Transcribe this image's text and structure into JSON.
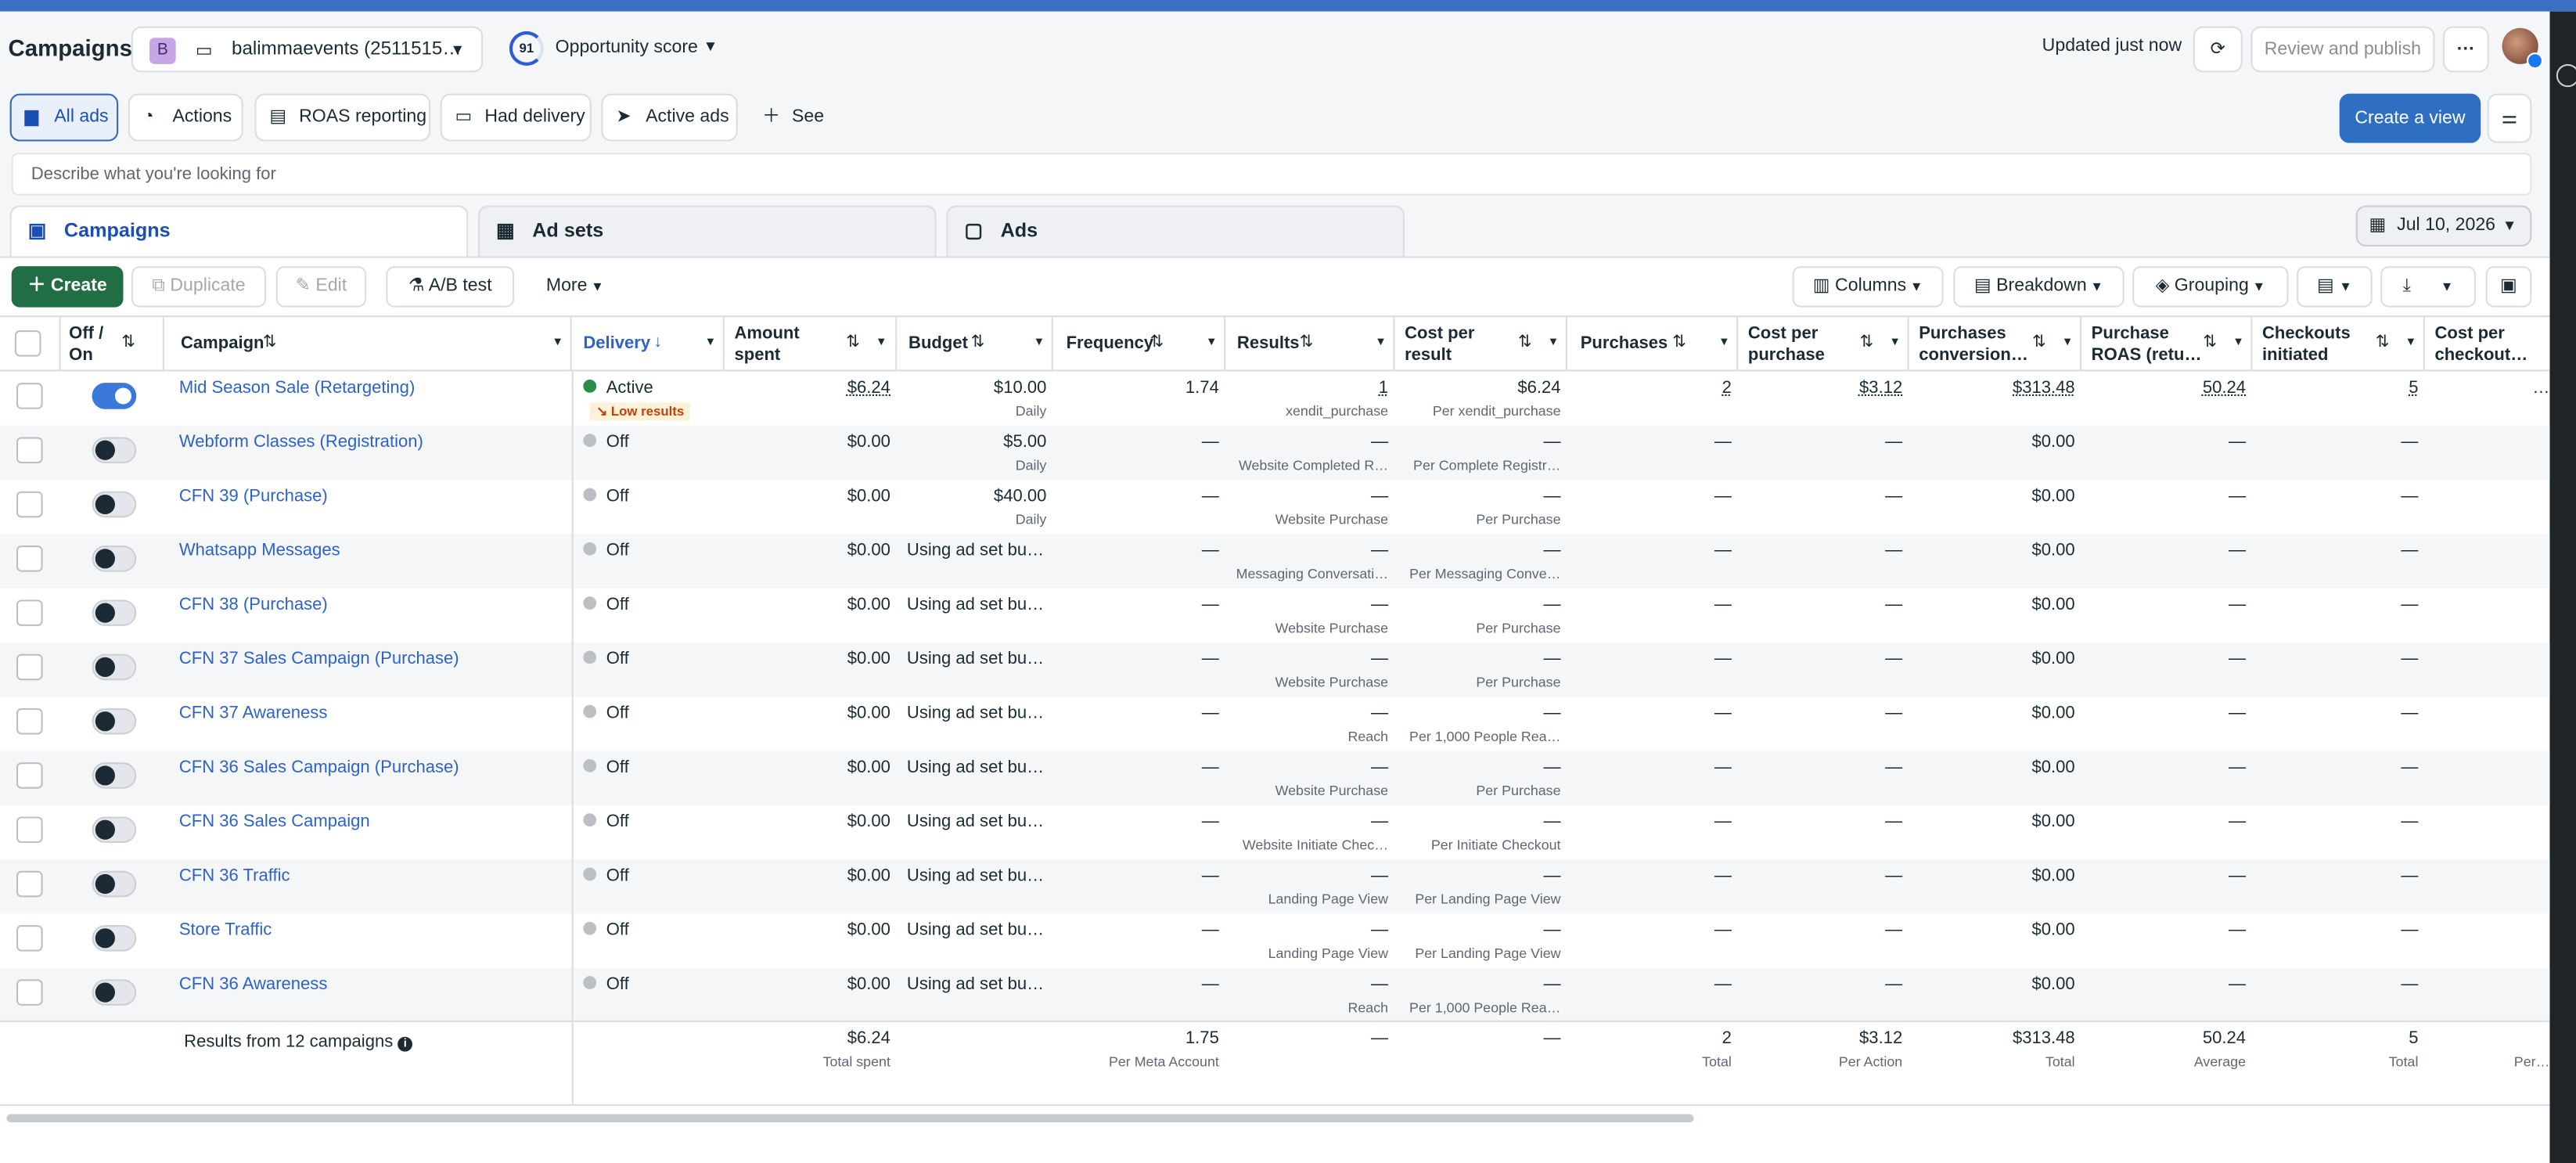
{
  "header": {
    "title": "Campaigns",
    "account_initial": "B",
    "account_name": "balimmaevents (2511515…",
    "opportunity_score": "91",
    "opportunity_label": "Opportunity score",
    "updated": "Updated just now",
    "review_publish": "Review and publish",
    "more": "···"
  },
  "views": {
    "items": [
      "All ads",
      "Actions",
      "ROAS reporting",
      "Had delivery",
      "Active ads",
      "See more"
    ],
    "create_view": "Create a view"
  },
  "search": {
    "placeholder": "Describe what you're looking for"
  },
  "tabs": {
    "campaigns": "Campaigns",
    "adsets": "Ad sets",
    "ads": "Ads",
    "date": "Jul 10, 2026"
  },
  "toolbar": {
    "create": "Create",
    "duplicate": "Duplicate",
    "edit": "Edit",
    "ab_test": "A/B test",
    "more": "More",
    "columns": "Columns",
    "breakdown": "Breakdown",
    "grouping": "Grouping"
  },
  "columns": {
    "offon": "Off / On",
    "campaign": "Campaign",
    "delivery": "Delivery",
    "amount_spent": "Amount spent",
    "budget": "Budget",
    "frequency": "Frequency",
    "results": "Results",
    "cost_per_result": "Cost per result",
    "purchases": "Purchases",
    "cost_per_purchase": "Cost per purchase",
    "purchases_conv": "Purchases conversion…",
    "purchase_roas": "Purchase ROAS (retu…",
    "checkouts": "Checkouts initiated",
    "cost_per_checkout": "Cost per checkout…"
  },
  "rows": [
    {
      "name": "Mid Season Sale (Retargeting)",
      "delivery": "Active",
      "low": "↘ Low results",
      "spent": "$6.24",
      "budget": "$10.00",
      "budget_sub": "Daily",
      "freq": "1.74",
      "results": "1",
      "results_sub": "xendit_purchase",
      "cpr": "$6.24",
      "cpr_sub": "Per xendit_purchase",
      "purchases": "2",
      "cpp": "$3.12",
      "conv": "$313.48",
      "roas": "50.24",
      "checkouts": "5",
      "cpc": "…"
    },
    {
      "name": "Webform Classes (Registration)",
      "delivery": "Off",
      "spent": "$0.00",
      "budget": "$5.00",
      "budget_sub": "Daily",
      "freq": "—",
      "results": "—",
      "results_sub": "Website Completed R…",
      "cpr": "—",
      "cpr_sub": "Per Complete Registr…",
      "purchases": "—",
      "cpp": "—",
      "conv": "$0.00",
      "roas": "—",
      "checkouts": "—",
      "cpc": ""
    },
    {
      "name": "CFN 39 (Purchase)",
      "delivery": "Off",
      "spent": "$0.00",
      "budget": "$40.00",
      "budget_sub": "Daily",
      "freq": "—",
      "results": "—",
      "results_sub": "Website Purchase",
      "cpr": "—",
      "cpr_sub": "Per Purchase",
      "purchases": "—",
      "cpp": "—",
      "conv": "$0.00",
      "roas": "—",
      "checkouts": "—",
      "cpc": ""
    },
    {
      "name": "Whatsapp Messages",
      "delivery": "Off",
      "spent": "$0.00",
      "budget": "Using ad set bu…",
      "budget_sub": "",
      "freq": "—",
      "results": "—",
      "results_sub": "Messaging Conversati…",
      "cpr": "—",
      "cpr_sub": "Per Messaging Conve…",
      "purchases": "—",
      "cpp": "—",
      "conv": "$0.00",
      "roas": "—",
      "checkouts": "—",
      "cpc": ""
    },
    {
      "name": "CFN 38 (Purchase)",
      "delivery": "Off",
      "spent": "$0.00",
      "budget": "Using ad set bu…",
      "budget_sub": "",
      "freq": "—",
      "results": "—",
      "results_sub": "Website Purchase",
      "cpr": "—",
      "cpr_sub": "Per Purchase",
      "purchases": "—",
      "cpp": "—",
      "conv": "$0.00",
      "roas": "—",
      "checkouts": "—",
      "cpc": ""
    },
    {
      "name": "CFN 37 Sales Campaign (Purchase)",
      "delivery": "Off",
      "spent": "$0.00",
      "budget": "Using ad set bu…",
      "budget_sub": "",
      "freq": "—",
      "results": "—",
      "results_sub": "Website Purchase",
      "cpr": "—",
      "cpr_sub": "Per Purchase",
      "purchases": "—",
      "cpp": "—",
      "conv": "$0.00",
      "roas": "—",
      "checkouts": "—",
      "cpc": ""
    },
    {
      "name": "CFN 37 Awareness",
      "delivery": "Off",
      "spent": "$0.00",
      "budget": "Using ad set bu…",
      "budget_sub": "",
      "freq": "—",
      "results": "—",
      "results_sub": "Reach",
      "cpr": "—",
      "cpr_sub": "Per 1,000 People Rea…",
      "purchases": "—",
      "cpp": "—",
      "conv": "$0.00",
      "roas": "—",
      "checkouts": "—",
      "cpc": ""
    },
    {
      "name": "CFN 36 Sales Campaign (Purchase)",
      "delivery": "Off",
      "spent": "$0.00",
      "budget": "Using ad set bu…",
      "budget_sub": "",
      "freq": "—",
      "results": "—",
      "results_sub": "Website Purchase",
      "cpr": "—",
      "cpr_sub": "Per Purchase",
      "purchases": "—",
      "cpp": "—",
      "conv": "$0.00",
      "roas": "—",
      "checkouts": "—",
      "cpc": ""
    },
    {
      "name": "CFN 36 Sales Campaign",
      "delivery": "Off",
      "spent": "$0.00",
      "budget": "Using ad set bu…",
      "budget_sub": "",
      "freq": "—",
      "results": "—",
      "results_sub": "Website Initiate Chec…",
      "cpr": "—",
      "cpr_sub": "Per Initiate Checkout",
      "purchases": "—",
      "cpp": "—",
      "conv": "$0.00",
      "roas": "—",
      "checkouts": "—",
      "cpc": ""
    },
    {
      "name": "CFN 36 Traffic",
      "delivery": "Off",
      "spent": "$0.00",
      "budget": "Using ad set bu…",
      "budget_sub": "",
      "freq": "—",
      "results": "—",
      "results_sub": "Landing Page View",
      "cpr": "—",
      "cpr_sub": "Per Landing Page View",
      "purchases": "—",
      "cpp": "—",
      "conv": "$0.00",
      "roas": "—",
      "checkouts": "—",
      "cpc": ""
    },
    {
      "name": "Store Traffic",
      "delivery": "Off",
      "spent": "$0.00",
      "budget": "Using ad set bu…",
      "budget_sub": "",
      "freq": "—",
      "results": "—",
      "results_sub": "Landing Page View",
      "cpr": "—",
      "cpr_sub": "Per Landing Page View",
      "purchases": "—",
      "cpp": "—",
      "conv": "$0.00",
      "roas": "—",
      "checkouts": "—",
      "cpc": ""
    },
    {
      "name": "CFN 36 Awareness",
      "delivery": "Off",
      "spent": "$0.00",
      "budget": "Using ad set bu…",
      "budget_sub": "",
      "freq": "—",
      "results": "—",
      "results_sub": "Reach",
      "cpr": "—",
      "cpr_sub": "Per 1,000 People Rea…",
      "purchases": "—",
      "cpp": "—",
      "conv": "$0.00",
      "roas": "—",
      "checkouts": "—",
      "cpc": ""
    }
  ],
  "totals": {
    "label": "Results from 12 campaigns",
    "spent": "$6.24",
    "spent_sub": "Total spent",
    "freq": "1.75",
    "freq_sub": "Per Meta Account",
    "results": "—",
    "cpr": "—",
    "purchases": "2",
    "purchases_sub": "Total",
    "cpp": "$3.12",
    "cpp_sub": "Per Action",
    "conv": "$313.48",
    "conv_sub": "Total",
    "roas": "50.24",
    "roas_sub": "Average",
    "checkouts": "5",
    "checkouts_sub": "Total",
    "cpc_sub": "Per…"
  }
}
